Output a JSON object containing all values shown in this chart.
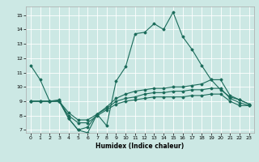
{
  "xlabel": "Humidex (Indice chaleur)",
  "xlim": [
    -0.5,
    23.5
  ],
  "ylim": [
    6.8,
    15.6
  ],
  "yticks": [
    7,
    8,
    9,
    10,
    11,
    12,
    13,
    14,
    15
  ],
  "xticks": [
    0,
    1,
    2,
    3,
    4,
    5,
    6,
    7,
    8,
    9,
    10,
    11,
    12,
    13,
    14,
    15,
    16,
    17,
    18,
    19,
    20,
    21,
    22,
    23
  ],
  "background_color": "#cce8e4",
  "line_color": "#1a6b5a",
  "line1": {
    "x": [
      0,
      1,
      2,
      3,
      4,
      5,
      6,
      7,
      8,
      9,
      10,
      11,
      12,
      13,
      14,
      15,
      16,
      17,
      18,
      19,
      20,
      21,
      22,
      23
    ],
    "y": [
      11.5,
      10.5,
      9.0,
      9.0,
      7.8,
      7.0,
      6.8,
      8.1,
      7.3,
      10.4,
      11.4,
      13.7,
      13.8,
      14.4,
      14.0,
      15.2,
      13.5,
      12.6,
      11.5,
      10.5,
      9.8,
      9.3,
      9.1,
      8.8
    ]
  },
  "line2": {
    "x": [
      0,
      1,
      2,
      3,
      4,
      5,
      6,
      7,
      8,
      9,
      10,
      11,
      12,
      13,
      14,
      15,
      16,
      17,
      18,
      19,
      20,
      21,
      22,
      23
    ],
    "y": [
      9.0,
      9.0,
      9.0,
      9.1,
      7.8,
      7.0,
      7.2,
      8.1,
      8.6,
      9.2,
      9.5,
      9.7,
      9.8,
      9.9,
      9.9,
      10.0,
      10.0,
      10.1,
      10.2,
      10.5,
      10.5,
      9.4,
      9.1,
      8.8
    ]
  },
  "line3": {
    "x": [
      0,
      1,
      2,
      3,
      4,
      5,
      6,
      7,
      8,
      9,
      10,
      11,
      12,
      13,
      14,
      15,
      16,
      17,
      18,
      19,
      20,
      21,
      22,
      23
    ],
    "y": [
      9.0,
      9.0,
      9.0,
      9.0,
      8.2,
      7.7,
      7.7,
      8.1,
      8.5,
      9.0,
      9.2,
      9.3,
      9.5,
      9.6,
      9.6,
      9.7,
      9.7,
      9.8,
      9.8,
      9.9,
      9.9,
      9.2,
      8.9,
      8.7
    ]
  },
  "line4": {
    "x": [
      0,
      1,
      2,
      3,
      4,
      5,
      6,
      7,
      8,
      9,
      10,
      11,
      12,
      13,
      14,
      15,
      16,
      17,
      18,
      19,
      20,
      21,
      22,
      23
    ],
    "y": [
      9.0,
      9.0,
      9.0,
      9.0,
      8.0,
      7.5,
      7.5,
      8.0,
      8.4,
      8.8,
      9.0,
      9.1,
      9.2,
      9.3,
      9.3,
      9.3,
      9.3,
      9.4,
      9.4,
      9.5,
      9.5,
      9.0,
      8.7,
      8.7
    ]
  }
}
